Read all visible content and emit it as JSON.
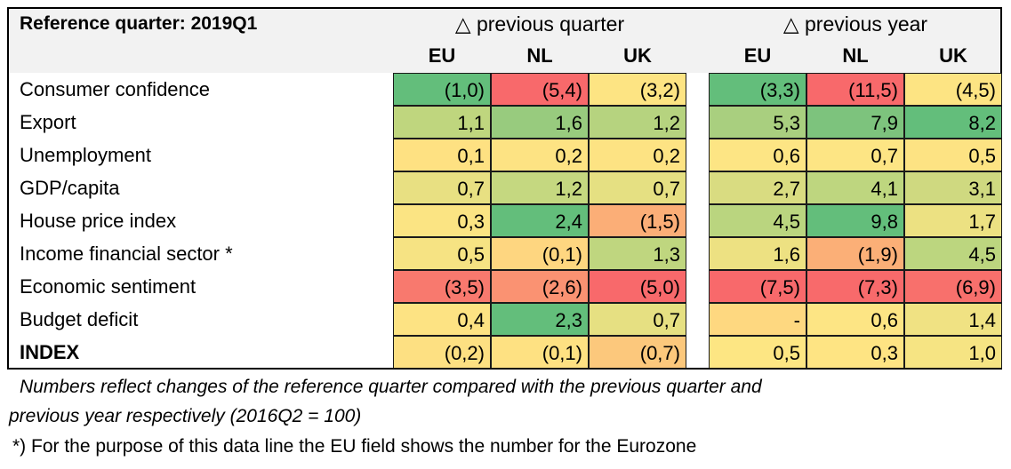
{
  "title": "Reference quarter: 2019Q1",
  "groups": [
    "△ previous quarter",
    "△ previous year"
  ],
  "columns": [
    "EU",
    "NL",
    "UK",
    "EU",
    "NL",
    "UK"
  ],
  "rows": [
    {
      "label": "Consumer confidence",
      "bold": false,
      "values": [
        "(1,0)",
        "(5,4)",
        "(3,2)",
        "(3,3)",
        "(11,5)",
        "(4,5)"
      ],
      "colors": [
        "#63be7b",
        "#f8696b",
        "#fde483",
        "#63be7b",
        "#f8696b",
        "#fde483"
      ]
    },
    {
      "label": "Export",
      "bold": false,
      "values": [
        "1,1",
        "1,6",
        "1,2",
        "5,3",
        "7,9",
        "8,2"
      ],
      "colors": [
        "#bfd67e",
        "#98cb7e",
        "#b6d37f",
        "#a9cf7f",
        "#7dc37d",
        "#63be7b"
      ]
    },
    {
      "label": "Unemployment",
      "bold": false,
      "values": [
        "0,1",
        "0,2",
        "0,2",
        "0,6",
        "0,7",
        "0,5"
      ],
      "colors": [
        "#fee182",
        "#fde383",
        "#fde383",
        "#fde584",
        "#fde584",
        "#fde383"
      ]
    },
    {
      "label": "GDP/capita",
      "bold": false,
      "values": [
        "0,7",
        "1,2",
        "0,7",
        "2,7",
        "4,1",
        "3,1"
      ],
      "colors": [
        "#e8e082",
        "#c5d880",
        "#e5e082",
        "#d9dc81",
        "#bed67f",
        "#cfd980"
      ]
    },
    {
      "label": "House price index",
      "bold": false,
      "values": [
        "0,3",
        "2,4",
        "(1,5)",
        "4,5",
        "9,8",
        "1,7"
      ],
      "colors": [
        "#fbe483",
        "#63be7b",
        "#fbae77",
        "#bad57f",
        "#63be7b",
        "#ece182"
      ]
    },
    {
      "label": "Income financial sector *",
      "bold": false,
      "values": [
        "0,5",
        "(0,1)",
        "1,3",
        "1,6",
        "(1,9)",
        "4,5"
      ],
      "colors": [
        "#f6e383",
        "#fed680",
        "#bfd67f",
        "#ede182",
        "#fbaf77",
        "#bcd67f"
      ]
    },
    {
      "label": "Economic sentiment",
      "bold": false,
      "values": [
        "(3,5)",
        "(2,6)",
        "(5,0)",
        "(7,5)",
        "(7,3)",
        "(6,9)"
      ],
      "colors": [
        "#f8796e",
        "#fa9272",
        "#f8696b",
        "#f8696b",
        "#f86a6b",
        "#f8706c"
      ]
    },
    {
      "label": "Budget deficit",
      "bold": false,
      "values": [
        "0,4",
        "2,3",
        "0,7",
        "-",
        "0,6",
        "1,4"
      ],
      "colors": [
        "#fde383",
        "#63be7b",
        "#e6e082",
        "#fed880",
        "#fde584",
        "#f0e283"
      ]
    },
    {
      "label": "INDEX",
      "bold": true,
      "values": [
        "(0,2)",
        "(0,1)",
        "(0,7)",
        "0,5",
        "0,3",
        "1,0"
      ],
      "colors": [
        "#fde082",
        "#fee182",
        "#fcc87c",
        "#fde683",
        "#fee483",
        "#f6e483"
      ]
    }
  ],
  "notes": {
    "line1": "Numbers reflect changes of the reference quarter compared with the previous quarter and",
    "line2": "previous year respectively (2016Q2 = 100)",
    "footnote": "*) For the purpose of this data line the EU field shows the number for the Eurozone"
  }
}
